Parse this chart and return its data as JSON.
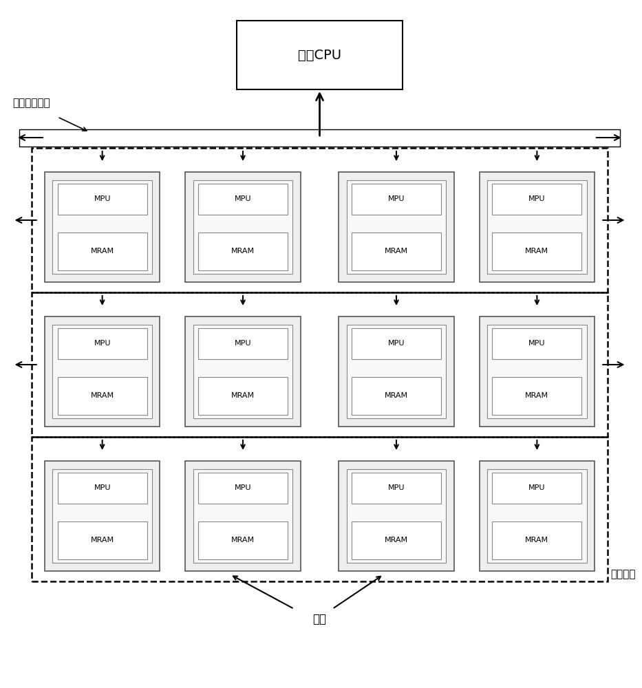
{
  "title": "主控CPU",
  "bus_label": "细胞阵列总线",
  "cell_array_label": "细胞阵列",
  "cell_label": "细胞",
  "mpu_label": "MPU",
  "mram_label": "MRAM",
  "bg_color": "#ffffff",
  "box_color": "#000000",
  "dashed_color": "#000000",
  "row_colors": [
    "#e8e8e8",
    "#e8e8e8",
    "#e8e8e8"
  ],
  "num_rows": 3,
  "num_cols": 4,
  "fig_width": 9.33,
  "fig_height": 10.0
}
